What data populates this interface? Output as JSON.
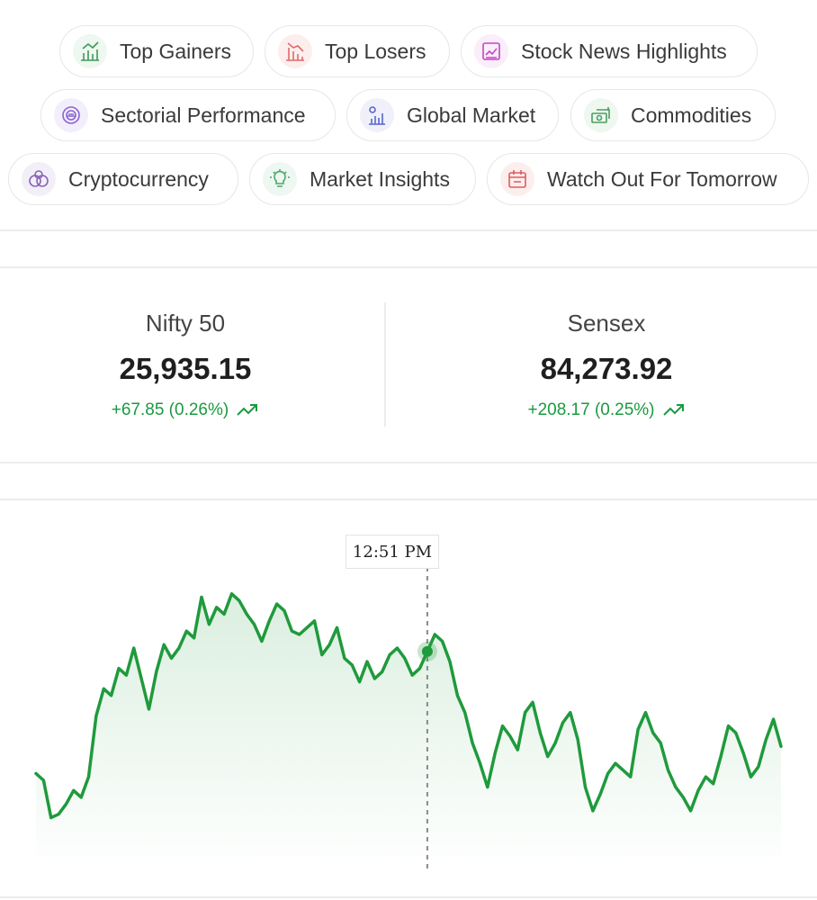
{
  "quick_links": [
    {
      "label": "Top Gainers",
      "icon": "bar-chart-up-icon",
      "color": "#3d9a5a"
    },
    {
      "label": "Top Losers",
      "icon": "bar-chart-down-icon",
      "color": "#e06b6b"
    },
    {
      "label": "Stock News Highlights",
      "icon": "news-chart-icon",
      "color": "#c445c6"
    },
    {
      "label": "Sectorial Performance",
      "icon": "gauge-icon",
      "color": "#8a63d2"
    },
    {
      "label": "Global Market",
      "icon": "globe-chart-icon",
      "color": "#5966c9"
    },
    {
      "label": "Commodities",
      "icon": "cash-stack-icon",
      "color": "#4b9e60"
    },
    {
      "label": "Cryptocurrency",
      "icon": "coins-icon",
      "color": "#8a63b8"
    },
    {
      "label": "Market Insights",
      "icon": "lightbulb-icon",
      "color": "#4aa86b"
    },
    {
      "label": "Watch Out For Tomorrow",
      "icon": "calendar-icon",
      "color": "#e05a5a"
    }
  ],
  "indices": [
    {
      "name": "Nifty 50",
      "value": "25,935.15",
      "change": "+67.85 (0.26%)"
    },
    {
      "name": "Sensex",
      "value": "84,273.92",
      "change": "+208.17 (0.25%)"
    }
  ],
  "colors": {
    "up": "#1a9a3f",
    "line": "#1f9a3c"
  },
  "chart_data": {
    "type": "area",
    "series": [
      {
        "values": [
          25843,
          25841,
          25830,
          25831,
          25834,
          25838,
          25836,
          25842,
          25860,
          25868,
          25866,
          25874,
          25872,
          25880,
          25871,
          25862,
          25873,
          25881,
          25877,
          25880,
          25885,
          25883,
          25895,
          25887,
          25892,
          25890,
          25896,
          25894,
          25890,
          25887,
          25882,
          25888,
          25893,
          25891,
          25885,
          25884,
          25886,
          25888,
          25878,
          25881,
          25886,
          25877,
          25875,
          25870,
          25876,
          25871,
          25873,
          25878,
          25880,
          25877,
          25872,
          25874,
          25879,
          25884,
          25882,
          25876,
          25866,
          25861,
          25852,
          25846,
          25839,
          25849,
          25857,
          25854,
          25850,
          25861,
          25864,
          25855,
          25848,
          25852,
          25858,
          25861,
          25853,
          25839,
          25832,
          25837,
          25843,
          25846,
          25844,
          25842,
          25856,
          25861,
          25855,
          25852,
          25844,
          25839,
          25836,
          25832,
          25838,
          25842,
          25840,
          25848,
          25857,
          25855,
          25849,
          25842,
          25845,
          25853,
          25859,
          25851
        ]
      }
    ],
    "tooltip": {
      "time": "12:51 PM",
      "index": 52
    }
  }
}
